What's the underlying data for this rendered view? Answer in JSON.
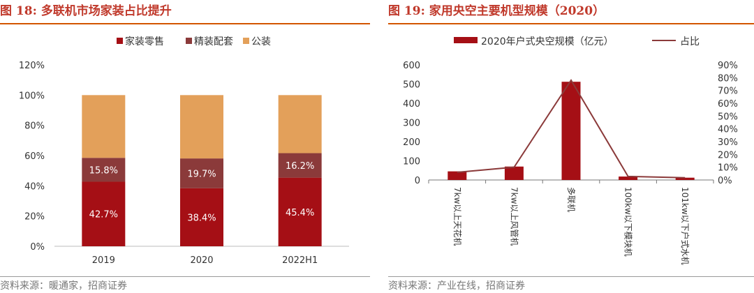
{
  "figures": {
    "left": {
      "title": "图 18:  多联机市场家装占比提升",
      "source": "资料来源：暖通家，招商证券"
    },
    "right": {
      "title": "图 19:  家用央空主要机型规模（2020）",
      "source": "资料来源：产业在线，招商证券"
    }
  },
  "chart_data": [
    {
      "type": "bar",
      "stacked": true,
      "categories": [
        "2019",
        "2020",
        "2022H1"
      ],
      "series": [
        {
          "name": "家装零售",
          "color": "#A50F15",
          "values": [
            42.7,
            38.4,
            45.4
          ],
          "labels": [
            "42.7%",
            "38.4%",
            "45.4%"
          ]
        },
        {
          "name": "精装配套",
          "color": "#8B3A3A",
          "values": [
            15.8,
            19.7,
            16.2
          ],
          "labels": [
            "15.8%",
            "19.7%",
            "16.2%"
          ]
        },
        {
          "name": "公装",
          "color": "#E3A05A",
          "values": [
            41.5,
            41.9,
            38.4
          ]
        }
      ],
      "ylim": [
        0,
        120
      ],
      "yticks": [
        "0%",
        "20%",
        "40%",
        "60%",
        "80%",
        "100%",
        "120%"
      ],
      "legend": "top",
      "grid": false
    },
    {
      "type": "bar",
      "categories": [
        "7kw以上天花机",
        "7kw以上风管机",
        "多联机",
        "100kw以下模块机",
        "101kw以下户式水机"
      ],
      "series": [
        {
          "name": "2020年户式央空规模（亿元）",
          "type": "bar",
          "axis": "left",
          "color": "#A50F15",
          "values": [
            45,
            70,
            512,
            18,
            12
          ]
        },
        {
          "name": "占比",
          "type": "line",
          "axis": "right",
          "color": "#8B3A3A",
          "values": [
            6.0,
            10.0,
            78.0,
            2.8,
            1.8
          ]
        }
      ],
      "ylim": [
        0,
        600
      ],
      "yticks": [
        "0",
        "100",
        "200",
        "300",
        "400",
        "500",
        "600"
      ],
      "y2lim": [
        0,
        90
      ],
      "y2ticks": [
        "0%",
        "10%",
        "20%",
        "30%",
        "40%",
        "50%",
        "60%",
        "70%",
        "80%",
        "90%"
      ],
      "legend": "top",
      "grid": false
    }
  ]
}
